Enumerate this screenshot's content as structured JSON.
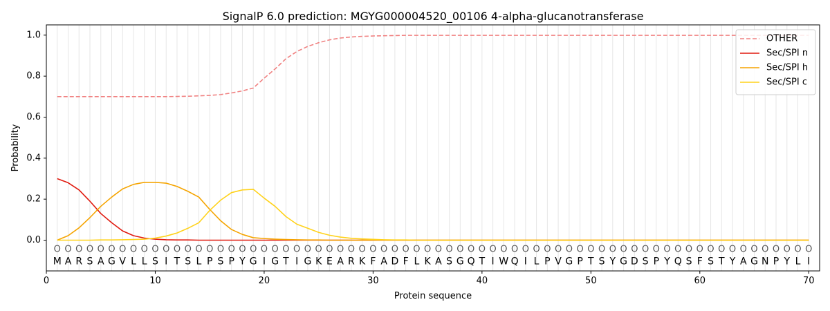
{
  "chart_data": {
    "type": "line",
    "title": "SignalP 6.0 prediction: MGYG000004520_00106 4-alpha-glucanotransferase",
    "xlabel": "Protein sequence",
    "ylabel": "Probability",
    "xlim": [
      0,
      71
    ],
    "ylim": [
      -0.15,
      1.05
    ],
    "xticks": [
      0,
      10,
      20,
      30,
      40,
      50,
      60,
      70
    ],
    "yticks": [
      0.0,
      0.2,
      0.4,
      0.6,
      0.8,
      1.0
    ],
    "xtick_labels": [
      "0",
      "10",
      "20",
      "30",
      "40",
      "50",
      "60",
      "70"
    ],
    "ytick_labels": [
      "0.0",
      "0.2",
      "0.4",
      "0.6",
      "0.8",
      "1.0"
    ],
    "legend_position": "top-right",
    "sequence": [
      "M",
      "A",
      "R",
      "S",
      "A",
      "G",
      "V",
      "L",
      "L",
      "S",
      "I",
      "T",
      "S",
      "L",
      "P",
      "S",
      "P",
      "Y",
      "G",
      "I",
      "G",
      "T",
      "I",
      "G",
      "K",
      "E",
      "A",
      "R",
      "K",
      "F",
      "A",
      "D",
      "F",
      "L",
      "K",
      "A",
      "S",
      "G",
      "Q",
      "T",
      "I",
      "W",
      "Q",
      "I",
      "L",
      "P",
      "V",
      "G",
      "P",
      "T",
      "S",
      "Y",
      "G",
      "D",
      "S",
      "P",
      "Y",
      "Q",
      "S",
      "F",
      "S",
      "T",
      "Y",
      "A",
      "G",
      "N",
      "P",
      "Y",
      "L",
      "I"
    ],
    "region_labels": [
      "O",
      "O",
      "O",
      "O",
      "O",
      "O",
      "O",
      "O",
      "O",
      "O",
      "O",
      "O",
      "O",
      "O",
      "O",
      "O",
      "O",
      "O",
      "O",
      "O",
      "O",
      "O",
      "O",
      "O",
      "O",
      "O",
      "O",
      "O",
      "O",
      "O",
      "O",
      "O",
      "O",
      "O",
      "O",
      "O",
      "O",
      "O",
      "O",
      "O",
      "O",
      "O",
      "O",
      "O",
      "O",
      "O",
      "O",
      "O",
      "O",
      "O",
      "O",
      "O",
      "O",
      "O",
      "O",
      "O",
      "O",
      "O",
      "O",
      "O",
      "O",
      "O",
      "O",
      "O",
      "O",
      "O",
      "O",
      "O",
      "O",
      "O"
    ],
    "x": [
      1,
      2,
      3,
      4,
      5,
      6,
      7,
      8,
      9,
      10,
      11,
      12,
      13,
      14,
      15,
      16,
      17,
      18,
      19,
      20,
      21,
      22,
      23,
      24,
      25,
      26,
      27,
      28,
      29,
      30,
      31,
      32,
      33,
      34,
      35,
      36,
      37,
      38,
      39,
      40,
      41,
      42,
      43,
      44,
      45,
      46,
      47,
      48,
      49,
      50,
      51,
      52,
      53,
      54,
      55,
      56,
      57,
      58,
      59,
      60,
      61,
      62,
      63,
      64,
      65,
      66,
      67,
      68,
      69,
      70
    ],
    "series": [
      {
        "name": "OTHER",
        "color": "#f08080",
        "dash": true,
        "values": [
          0.7,
          0.7,
          0.7,
          0.7,
          0.7,
          0.7,
          0.7,
          0.7,
          0.7,
          0.7,
          0.7,
          0.701,
          0.702,
          0.704,
          0.706,
          0.71,
          0.718,
          0.728,
          0.742,
          0.79,
          0.835,
          0.885,
          0.92,
          0.945,
          0.963,
          0.977,
          0.986,
          0.991,
          0.994,
          0.996,
          0.997,
          0.998,
          0.999,
          0.999,
          0.999,
          0.999,
          0.999,
          0.999,
          0.999,
          0.999,
          0.999,
          0.999,
          0.999,
          0.999,
          0.999,
          0.999,
          0.999,
          0.999,
          0.999,
          0.999,
          0.999,
          0.999,
          0.999,
          0.999,
          0.999,
          0.999,
          0.999,
          0.999,
          0.999,
          0.999,
          0.999,
          0.999,
          0.999,
          0.999,
          0.999,
          0.999,
          0.999,
          0.999,
          0.999,
          0.999
        ]
      },
      {
        "name": "Sec/SPI n",
        "color": "#e0190e",
        "dash": false,
        "values": [
          0.3,
          0.28,
          0.245,
          0.19,
          0.13,
          0.085,
          0.045,
          0.022,
          0.01,
          0.005,
          0.002,
          0.001,
          0.001,
          0,
          0,
          0,
          0,
          0,
          0,
          0,
          0,
          0,
          0,
          0,
          0,
          0,
          0,
          0,
          0,
          0,
          0,
          0,
          0,
          0,
          0,
          0,
          0,
          0,
          0,
          0,
          0,
          0,
          0,
          0,
          0,
          0,
          0,
          0,
          0,
          0,
          0,
          0,
          0,
          0,
          0,
          0,
          0,
          0,
          0,
          0,
          0,
          0,
          0,
          0,
          0,
          0,
          0,
          0,
          0,
          0
        ]
      },
      {
        "name": "Sec/SPI h",
        "color": "#f5a400",
        "dash": false,
        "values": [
          0.0,
          0.022,
          0.06,
          0.11,
          0.165,
          0.21,
          0.25,
          0.272,
          0.282,
          0.282,
          0.278,
          0.262,
          0.238,
          0.21,
          0.15,
          0.095,
          0.052,
          0.028,
          0.012,
          0.008,
          0.005,
          0.003,
          0.002,
          0.001,
          0.001,
          0,
          0,
          0,
          0,
          0,
          0,
          0,
          0,
          0,
          0,
          0,
          0,
          0,
          0,
          0,
          0,
          0,
          0,
          0,
          0,
          0,
          0,
          0,
          0,
          0,
          0,
          0,
          0,
          0,
          0,
          0,
          0,
          0,
          0,
          0,
          0,
          0,
          0,
          0,
          0,
          0,
          0,
          0,
          0,
          0
        ]
      },
      {
        "name": "Sec/SPI c",
        "color": "#ffd21a",
        "dash": false,
        "values": [
          0.0,
          0.0,
          0.0,
          0.0,
          0.001,
          0.001,
          0.002,
          0.003,
          0.005,
          0.01,
          0.02,
          0.035,
          0.058,
          0.085,
          0.145,
          0.195,
          0.232,
          0.245,
          0.248,
          0.205,
          0.165,
          0.115,
          0.078,
          0.058,
          0.038,
          0.024,
          0.015,
          0.009,
          0.006,
          0.004,
          0.002,
          0.001,
          0.001,
          0,
          0,
          0,
          0,
          0,
          0,
          0,
          0,
          0,
          0,
          0,
          0,
          0,
          0,
          0,
          0,
          0,
          0,
          0,
          0,
          0,
          0,
          0,
          0,
          0,
          0,
          0,
          0,
          0,
          0,
          0,
          0,
          0,
          0,
          0,
          0,
          0
        ]
      }
    ]
  }
}
